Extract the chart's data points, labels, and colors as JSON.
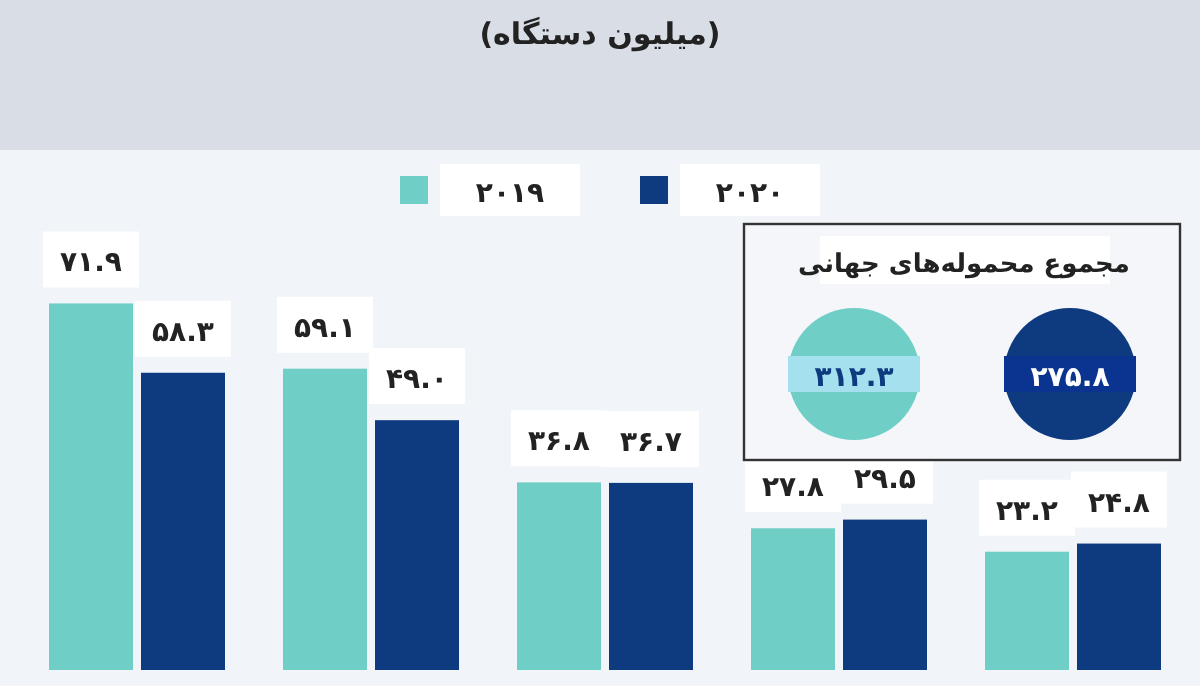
{
  "chart_data": {
    "type": "bar",
    "title": "(میلیون دستگاه)",
    "categories": [
      null,
      null,
      null,
      null,
      null
    ],
    "legend": "top",
    "series": [
      {
        "name": "۲۰۱۹",
        "color": "#6fcfc6",
        "values": [
          71.9,
          59.1,
          36.8,
          27.8,
          23.2
        ],
        "value_labels": [
          "۷۱.۹",
          "۵۹.۱",
          "۳۶.۸",
          "۲۷.۸",
          "۲۳.۲"
        ]
      },
      {
        "name": "۲۰۲۰",
        "color": "#0e3a80",
        "values": [
          58.3,
          49.0,
          36.7,
          29.5,
          24.8
        ],
        "value_labels": [
          "۵۸.۳",
          "۴۹.۰",
          "۳۶.۷",
          "۲۹.۵",
          "۲۴.۸"
        ]
      }
    ],
    "annotations": [
      "مجموع محموله‌های جهانی",
      "۳۱۲.۳",
      "۲۷۵.۸"
    ]
  }
}
